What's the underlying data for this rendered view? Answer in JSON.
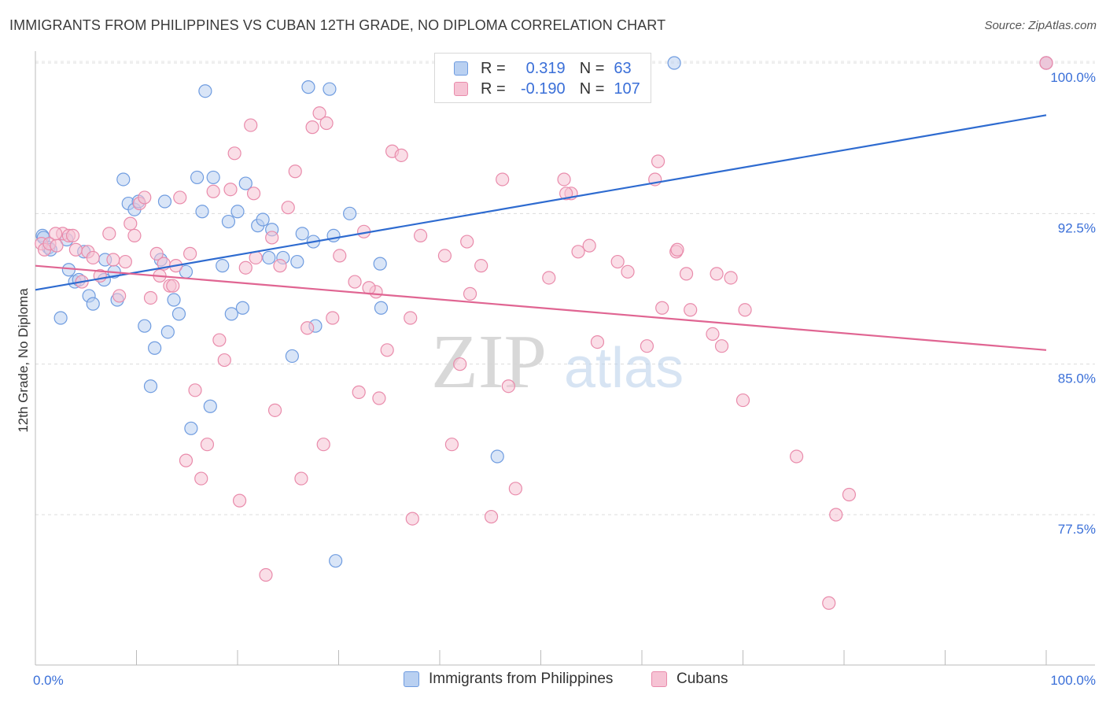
{
  "title": "IMMIGRANTS FROM PHILIPPINES VS CUBAN 12TH GRADE, NO DIPLOMA CORRELATION CHART",
  "source": "Source: ZipAtlas.com",
  "watermark": {
    "zip": "ZIP",
    "atlas": "atlas"
  },
  "legend": {
    "r_label": "R =",
    "n_label": "N =",
    "rows": [
      {
        "r": "0.319",
        "n": "63"
      },
      {
        "r": "-0.190",
        "n": "107"
      }
    ]
  },
  "chart_data": {
    "type": "scatter",
    "xlabel": "",
    "ylabel": "12th Grade, No Diploma",
    "xlim": [
      0,
      100
    ],
    "ylim": [
      70.5,
      101.5
    ],
    "x_tick_labels": [
      "0.0%",
      "100.0%"
    ],
    "y_ticks": [
      {
        "value": 100.0,
        "label": "100.0%"
      },
      {
        "value": 92.5,
        "label": "92.5%"
      },
      {
        "value": 85.0,
        "label": "85.0%"
      },
      {
        "value": 77.5,
        "label": "77.5%"
      }
    ],
    "grid": true,
    "legend_position": "bottom",
    "series": [
      {
        "name": "Immigrants from Philippines",
        "color": "#6f9ce0",
        "fill": "#b9d0f1",
        "trendline": {
          "x": [
            0,
            100
          ],
          "y": [
            88.7,
            97.4
          ],
          "color": "#2e6bd0"
        },
        "points": [
          [
            0.7,
            91.4
          ],
          [
            0.8,
            91.3
          ],
          [
            1.3,
            90.8
          ],
          [
            1.5,
            90.7
          ],
          [
            2.5,
            87.3
          ],
          [
            3.1,
            91.2
          ],
          [
            3.3,
            89.7
          ],
          [
            3.9,
            89.1
          ],
          [
            4.3,
            89.2
          ],
          [
            4.8,
            90.6
          ],
          [
            5.3,
            88.4
          ],
          [
            5.7,
            88.0
          ],
          [
            6.8,
            89.2
          ],
          [
            6.9,
            90.2
          ],
          [
            7.8,
            89.6
          ],
          [
            8.1,
            88.2
          ],
          [
            8.7,
            94.2
          ],
          [
            9.2,
            93.0
          ],
          [
            9.8,
            92.7
          ],
          [
            10.2,
            93.1
          ],
          [
            10.8,
            86.9
          ],
          [
            11.4,
            83.9
          ],
          [
            11.8,
            85.8
          ],
          [
            12.4,
            90.2
          ],
          [
            12.8,
            93.1
          ],
          [
            13.1,
            86.6
          ],
          [
            13.7,
            88.2
          ],
          [
            14.2,
            87.5
          ],
          [
            14.9,
            89.6
          ],
          [
            15.4,
            81.8
          ],
          [
            16.0,
            94.3
          ],
          [
            16.5,
            92.6
          ],
          [
            16.8,
            98.6
          ],
          [
            17.3,
            82.9
          ],
          [
            17.6,
            94.3
          ],
          [
            18.5,
            89.9
          ],
          [
            19.1,
            92.1
          ],
          [
            19.4,
            87.5
          ],
          [
            20.0,
            92.6
          ],
          [
            20.5,
            87.8
          ],
          [
            20.8,
            94.0
          ],
          [
            22.0,
            91.9
          ],
          [
            22.5,
            92.2
          ],
          [
            23.1,
            90.3
          ],
          [
            23.4,
            91.7
          ],
          [
            24.5,
            90.3
          ],
          [
            25.4,
            85.4
          ],
          [
            25.9,
            90.1
          ],
          [
            26.4,
            91.5
          ],
          [
            27.0,
            98.8
          ],
          [
            27.5,
            91.1
          ],
          [
            27.7,
            86.9
          ],
          [
            29.1,
            98.7
          ],
          [
            29.5,
            91.4
          ],
          [
            29.7,
            75.2
          ],
          [
            31.1,
            92.5
          ],
          [
            34.1,
            90.0
          ],
          [
            34.2,
            87.8
          ],
          [
            45.7,
            80.4
          ],
          [
            60.0,
            100.0
          ],
          [
            63.2,
            100.0
          ],
          [
            100.0,
            100.0
          ],
          [
            100.0,
            100.0
          ]
        ]
      },
      {
        "name": "Cubans",
        "color": "#e98bab",
        "fill": "#f6c3d4",
        "trendline": {
          "x": [
            0,
            100
          ],
          "y": [
            89.9,
            85.7
          ],
          "color": "#e06592"
        },
        "points": [
          [
            0.6,
            91.0
          ],
          [
            0.9,
            90.7
          ],
          [
            1.4,
            91.0
          ],
          [
            2.1,
            90.9
          ],
          [
            2.7,
            91.5
          ],
          [
            3.3,
            91.4
          ],
          [
            3.7,
            91.4
          ],
          [
            4.0,
            90.7
          ],
          [
            4.6,
            89.1
          ],
          [
            5.2,
            90.6
          ],
          [
            5.7,
            90.3
          ],
          [
            6.4,
            89.4
          ],
          [
            7.3,
            91.5
          ],
          [
            7.7,
            90.2
          ],
          [
            8.3,
            88.4
          ],
          [
            8.9,
            90.1
          ],
          [
            9.4,
            92.0
          ],
          [
            9.8,
            91.4
          ],
          [
            10.3,
            93.0
          ],
          [
            10.8,
            93.3
          ],
          [
            11.4,
            88.3
          ],
          [
            12.0,
            90.5
          ],
          [
            12.3,
            89.4
          ],
          [
            12.7,
            90.0
          ],
          [
            13.3,
            88.9
          ],
          [
            13.9,
            89.9
          ],
          [
            14.3,
            93.3
          ],
          [
            14.9,
            80.2
          ],
          [
            15.3,
            90.5
          ],
          [
            15.8,
            83.7
          ],
          [
            16.4,
            79.3
          ],
          [
            17.0,
            81.0
          ],
          [
            17.6,
            93.6
          ],
          [
            18.2,
            86.2
          ],
          [
            18.7,
            85.2
          ],
          [
            19.3,
            93.7
          ],
          [
            19.7,
            95.5
          ],
          [
            20.2,
            78.2
          ],
          [
            20.8,
            89.8
          ],
          [
            21.6,
            93.5
          ],
          [
            21.8,
            90.3
          ],
          [
            22.8,
            74.5
          ],
          [
            23.4,
            91.3
          ],
          [
            23.7,
            82.7
          ],
          [
            24.2,
            89.9
          ],
          [
            25.0,
            92.8
          ],
          [
            26.3,
            79.3
          ],
          [
            26.9,
            86.8
          ],
          [
            27.4,
            96.8
          ],
          [
            28.1,
            97.5
          ],
          [
            28.5,
            81.0
          ],
          [
            28.8,
            97.0
          ],
          [
            29.4,
            87.3
          ],
          [
            30.1,
            90.4
          ],
          [
            31.6,
            89.1
          ],
          [
            32.0,
            83.6
          ],
          [
            32.5,
            91.6
          ],
          [
            33.7,
            88.6
          ],
          [
            34.0,
            83.3
          ],
          [
            34.8,
            85.7
          ],
          [
            35.3,
            95.6
          ],
          [
            36.2,
            95.4
          ],
          [
            37.1,
            87.3
          ],
          [
            37.3,
            77.3
          ],
          [
            38.1,
            91.4
          ],
          [
            40.5,
            90.4
          ],
          [
            41.2,
            81.0
          ],
          [
            42.0,
            85.0
          ],
          [
            42.7,
            91.1
          ],
          [
            43.0,
            88.5
          ],
          [
            44.1,
            89.9
          ],
          [
            45.1,
            77.4
          ],
          [
            46.2,
            94.2
          ],
          [
            46.8,
            83.9
          ],
          [
            47.5,
            78.8
          ],
          [
            50.8,
            89.3
          ],
          [
            52.3,
            94.2
          ],
          [
            53.0,
            93.5
          ],
          [
            53.7,
            90.6
          ],
          [
            54.8,
            90.9
          ],
          [
            55.6,
            86.1
          ],
          [
            57.6,
            90.1
          ],
          [
            58.6,
            89.6
          ],
          [
            60.5,
            85.9
          ],
          [
            61.3,
            94.2
          ],
          [
            61.6,
            95.1
          ],
          [
            62.0,
            87.8
          ],
          [
            63.4,
            90.6
          ],
          [
            64.4,
            89.5
          ],
          [
            64.8,
            87.7
          ],
          [
            67.0,
            86.5
          ],
          [
            67.4,
            89.5
          ],
          [
            67.9,
            85.9
          ],
          [
            68.8,
            89.3
          ],
          [
            70.0,
            83.2
          ],
          [
            70.2,
            87.7
          ],
          [
            75.3,
            80.4
          ],
          [
            78.5,
            73.1
          ],
          [
            79.2,
            77.5
          ],
          [
            80.5,
            78.5
          ],
          [
            100.0,
            100.0
          ],
          [
            100.0,
            100.0
          ],
          [
            63.5,
            90.7
          ],
          [
            52.5,
            93.5
          ],
          [
            33.0,
            88.8
          ],
          [
            21.3,
            96.9
          ],
          [
            13.6,
            88.9
          ],
          [
            25.7,
            94.6
          ],
          [
            2.0,
            91.5
          ]
        ]
      }
    ]
  }
}
